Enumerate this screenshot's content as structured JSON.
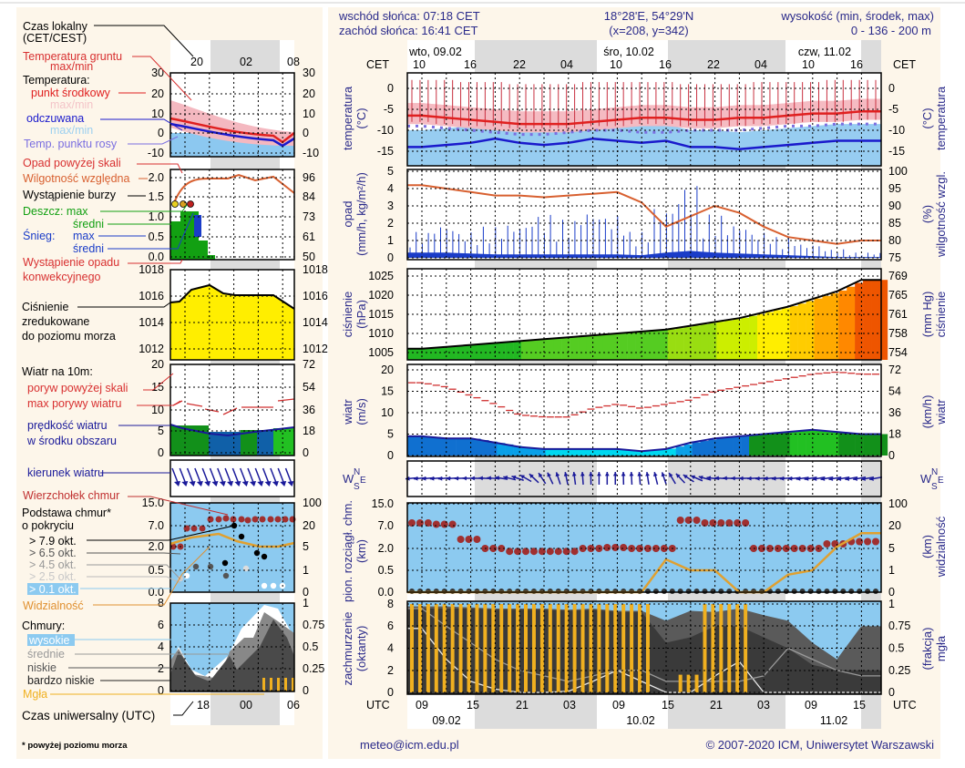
{
  "header": {
    "sunrise": "wschód słońca: 07:18 CET",
    "sunset": "zachód słońca: 16:41 CET",
    "coords": "18°28'E, 54°29'N",
    "grid": "(x=208,  y=342)",
    "altitude_title": "wysokość (min, środek, max)",
    "altitude_values": "0 - 136 - 200 m"
  },
  "time_axis": {
    "tz_top": "CET",
    "tz_bottom": "UTC",
    "top_days": [
      "wto, 09.02",
      "śro, 10.02",
      "czw, 11.02"
    ],
    "top_hours": [
      "10",
      "16",
      "22",
      "04",
      "10",
      "16",
      "22",
      "04",
      "10",
      "16"
    ],
    "bottom_hours": [
      "09",
      "15",
      "21",
      "03",
      "09",
      "15",
      "21",
      "03",
      "09",
      "15"
    ],
    "bottom_days": [
      "09.02",
      "10.02",
      "11.02"
    ]
  },
  "legend": {
    "local_time": "Czas lokalny",
    "local_time_tz": "(CET/CEST)",
    "local_hours": [
      "20",
      "02",
      "08"
    ],
    "utc_hours": [
      "18",
      "00",
      "06"
    ],
    "utc_time": "Czas uniwersalny (UTC)",
    "ground_temp": "Temperatura gruntu",
    "ground_temp_mm": "max/min",
    "temperature": "Temperatura:",
    "midpoint": "punkt środkowy",
    "midpoint_mm": "max/min",
    "feels_like": "odczuwana",
    "feels_like_mm": "max/min",
    "dew_point": "Temp. punktu rosy",
    "precip_over": "Opad powyżej skali",
    "humidity": "Wilgotność względna",
    "storm": "Wystąpienie burzy",
    "rain_max": "Deszcz: max",
    "rain_mean": "średni",
    "snow_label": "Śnieg:",
    "snow_max": "max",
    "snow_mean": "średni",
    "convective_1": "Wystąpienie opadu",
    "convective_2": "konwekcyjnego",
    "pressure_1": "Ciśnienie",
    "pressure_2": "zredukowane",
    "pressure_3": "do poziomu morza",
    "wind_10m": "Wiatr na 10m:",
    "gust_over": "poryw powyżej skali",
    "gust_max": "max porywy wiatru",
    "wind_speed_1": "prędkość wiatru",
    "wind_speed_2": "w środku obszaru",
    "wind_dir": "kierunek wiatru",
    "cloud_top": "Wierzchołek chmur",
    "cloud_base_1": "Podstawa chmur*",
    "cloud_base_2": "o pokryciu",
    "okt": [
      "> 7.9 okt.",
      "> 6.5 okt.",
      "> 4.5 okt.",
      "> 2.5 okt.",
      "> 0.1 okt."
    ],
    "visibility": "Widzialność",
    "clouds": "Chmury:",
    "high": "wysokie",
    "medium": "średnie",
    "low": "niskie",
    "very_low": "bardzo niskie",
    "fog": "Mgła",
    "footnote": "* powyżej poziomu morza",
    "ticks": {
      "temp_l": [
        "30",
        "20",
        "10",
        "0",
        "-10"
      ],
      "temp_r": [
        "30",
        "20",
        "10",
        "0",
        "-10"
      ],
      "prec_l": [
        "2.0",
        "1.5",
        "1.0",
        "0.5",
        "0.0"
      ],
      "prec_r": [
        "96",
        "84",
        "73",
        "61",
        "50"
      ],
      "pres": [
        "1018",
        "1016",
        "1014",
        "1012"
      ],
      "wind_l": [
        "20",
        "15",
        "10",
        "5",
        "0"
      ],
      "wind_r": [
        "72",
        "54",
        "36",
        "18",
        "0"
      ],
      "cloud_l": [
        "15.0",
        "7.0",
        "2.0",
        "0.5",
        "0.0"
      ],
      "cloud_r": [
        "100",
        "20",
        "5",
        "1",
        "0"
      ],
      "cover_l": [
        "8",
        "6",
        "4",
        "2",
        "0"
      ],
      "cover_r": [
        "1",
        "0.75",
        "0.5",
        "0.25",
        "0"
      ]
    }
  },
  "axes": {
    "temp_l": "temperatura",
    "temp_u": "(°C)",
    "prec_l": "opad",
    "prec_u": "(mm/h, kg/m²/h)",
    "hum_l": "wilgotność wzgl.",
    "hum_u": "(%)",
    "pres_l": "ciśnienie",
    "pres_u": "(hPa)",
    "pres_r_u": "(mm Hg)",
    "wind_l": "wiatr",
    "wind_u": "(m/s)",
    "wind_r_u": "(km/h)",
    "compass": [
      "W",
      "N",
      "S",
      "E"
    ],
    "cloud_l": "pion. rozciągł. chm.",
    "cloud_u": "(km)",
    "cover_l": "zachmurzenie",
    "cover_u": "(oktanty)",
    "vis_l": "widzialność",
    "vis_u": "(km)",
    "fog_l": "mgła",
    "fog_u": "(frakcja)"
  },
  "footer": {
    "email": "meteo@icm.edu.pl",
    "copyright": "© 2007-2020 ICM, Uniwersytet Warszawski"
  },
  "colors": {
    "temp_mid": "#e02020",
    "temp_band": "#f4b8c0",
    "feels": "#1a1acc",
    "feels_band": "#8cc8f0",
    "dew": "#7a6ee0",
    "humidity": "#d86030",
    "snow": "#1a3cc8",
    "rain": "#12a012",
    "gust": "#d03030",
    "cloud_top": "#a03030",
    "visibility": "#e0a030",
    "fog": "#f0b020",
    "night": "#dcdcdc",
    "sky": "#8ccaf0",
    "bg": "#fdf6ea"
  },
  "chart_data": [
    {
      "type": "line",
      "title": "temperatura",
      "ylabel": "temperatura (°C)",
      "ylim": [
        -18,
        3
      ],
      "yticks": [
        "0",
        "-5",
        "-10",
        "-15"
      ],
      "x": [
        "09.02 09:00",
        "09.02 12:00",
        "09.02 15:00",
        "09.02 18:00",
        "09.02 21:00",
        "10.02 00:00",
        "10.02 03:00",
        "10.02 06:00",
        "10.02 09:00",
        "10.02 12:00",
        "10.02 15:00",
        "10.02 18:00",
        "10.02 21:00",
        "11.02 00:00",
        "11.02 03:00",
        "11.02 06:00",
        "11.02 09:00",
        "11.02 12:00",
        "11.02 15:00"
      ],
      "series": [
        {
          "name": "punkt środkowy",
          "values": [
            -6.5,
            -7,
            -7.5,
            -8,
            -8.5,
            -8.5,
            -8.5,
            -8,
            -7.5,
            -7,
            -7,
            -7.5,
            -7.5,
            -7,
            -7,
            -6.5,
            -6,
            -6,
            -5.5
          ]
        },
        {
          "name": "odczuwana",
          "values": [
            -14,
            -13.5,
            -13,
            -12,
            -13,
            -13.5,
            -13,
            -12,
            -12.5,
            -13,
            -12.5,
            -14,
            -14,
            -14.5,
            -14,
            -13.5,
            -13,
            -12.5,
            -12.5
          ]
        },
        {
          "name": "Temp. punktu rosy",
          "values": [
            -9,
            -9.5,
            -10,
            -10.5,
            -11,
            -11,
            -10.5,
            -10,
            -10,
            -10.5,
            -10.5,
            -10,
            -10,
            -10,
            -9.5,
            -9,
            -9,
            -8.5,
            -8.5
          ]
        }
      ],
      "ground_temp_max": [
        -1,
        -1,
        -1.5,
        -1.5,
        -2,
        -2,
        -2,
        -1.5,
        -1.5,
        -1.5,
        -1.5,
        -2,
        -2,
        -2,
        -1.5,
        -1.5,
        -1.5,
        -1,
        -1
      ],
      "ground_temp_min": [
        -8,
        -8.5,
        -9,
        -9,
        -9.5,
        -9.5,
        -9.5,
        -9,
        -9,
        -8.5,
        -8.5,
        -9,
        -9,
        -9,
        -8.5,
        -8.5,
        -8,
        -8,
        -7.5
      ]
    },
    {
      "type": "bar",
      "title": "opad / wilgotność",
      "ylabel": "opad (mm/h, kg/m²/h)",
      "ylim": [
        0,
        5
      ],
      "yticks": [
        "5",
        "4",
        "3",
        "2",
        "1",
        "0"
      ],
      "y2label": "wilgotność wzgl. (%)",
      "y2lim": [
        75,
        100
      ],
      "y2ticks": [
        "100",
        "95",
        "90",
        "85",
        "80",
        "75"
      ],
      "x": [
        "09.02 09:00",
        "09.02 12:00",
        "09.02 15:00",
        "09.02 18:00",
        "09.02 21:00",
        "10.02 00:00",
        "10.02 03:00",
        "10.02 06:00",
        "10.02 09:00",
        "10.02 12:00",
        "10.02 15:00",
        "10.02 18:00",
        "10.02 21:00",
        "11.02 00:00",
        "11.02 03:00",
        "11.02 06:00",
        "11.02 09:00",
        "11.02 12:00",
        "11.02 15:00"
      ],
      "series": [
        {
          "name": "Śnieg max",
          "values": [
            1.5,
            2,
            1.5,
            1.8,
            2,
            2.5,
            2.2,
            2.8,
            2.5,
            1.5,
            3,
            4.2,
            2.5,
            2,
            1.5,
            1.2,
            0.8,
            0.5,
            0.3
          ]
        },
        {
          "name": "Śnieg średni",
          "values": [
            0.3,
            0.3,
            0.25,
            0.2,
            0.2,
            0.2,
            0.2,
            0.2,
            0.2,
            0.15,
            0.3,
            0.4,
            0.3,
            0.25,
            0.2,
            0.15,
            0.1,
            0.05,
            0.05
          ]
        },
        {
          "name": "Wilgotność względna",
          "values": [
            96,
            95,
            94,
            93,
            93,
            92.5,
            93,
            93.5,
            94,
            91,
            84,
            87,
            90,
            88,
            84,
            81,
            80,
            79,
            80
          ]
        }
      ]
    },
    {
      "type": "area",
      "title": "ciśnienie",
      "ylabel": "ciśnienie (hPa)",
      "ylim": [
        1003,
        1027
      ],
      "yticks": [
        "1025",
        "1020",
        "1015",
        "1010",
        "1005"
      ],
      "y2label": "ciśnienie (mm Hg)",
      "y2ticks": [
        "769",
        "765",
        "761",
        "758",
        "754"
      ],
      "x": [
        "09.02 09:00",
        "09.02 12:00",
        "09.02 15:00",
        "09.02 18:00",
        "09.02 21:00",
        "10.02 00:00",
        "10.02 03:00",
        "10.02 06:00",
        "10.02 09:00",
        "10.02 12:00",
        "10.02 15:00",
        "10.02 18:00",
        "10.02 21:00",
        "11.02 00:00",
        "11.02 03:00",
        "11.02 06:00",
        "11.02 09:00",
        "11.02 12:00",
        "11.02 15:00"
      ],
      "values": [
        1006,
        1006.5,
        1007,
        1007.5,
        1008,
        1008.5,
        1009,
        1009.5,
        1010,
        1010.5,
        1011,
        1012,
        1013,
        1014,
        1015.5,
        1017,
        1019,
        1021,
        1024
      ]
    },
    {
      "type": "area",
      "title": "wiatr",
      "ylabel": "wiatr (m/s)",
      "ylim": [
        0,
        20
      ],
      "yticks": [
        "20",
        "15",
        "10",
        "5",
        "0"
      ],
      "y2label": "wiatr (km/h)",
      "y2ticks": [
        "72",
        "54",
        "36",
        "18",
        "0"
      ],
      "x": [
        "09.02 09:00",
        "09.02 12:00",
        "09.02 15:00",
        "09.02 18:00",
        "09.02 21:00",
        "10.02 00:00",
        "10.02 03:00",
        "10.02 06:00",
        "10.02 09:00",
        "10.02 12:00",
        "10.02 15:00",
        "10.02 18:00",
        "10.02 21:00",
        "11.02 00:00",
        "11.02 03:00",
        "11.02 06:00",
        "11.02 09:00",
        "11.02 12:00",
        "11.02 15:00"
      ],
      "series": [
        {
          "name": "prędkość wiatru",
          "values": [
            4.5,
            4,
            4,
            3,
            2,
            1.5,
            1.5,
            1.5,
            1.5,
            1,
            1.5,
            3,
            4,
            4.5,
            5,
            5.5,
            6,
            5.5,
            5
          ]
        },
        {
          "name": "max porywy wiatru",
          "values": [
            17,
            16,
            14,
            12,
            9.5,
            9,
            9,
            11,
            12,
            11,
            12,
            13,
            15,
            16,
            17,
            18,
            19,
            19.5,
            19
          ]
        },
        {
          "name": "kierunek wiatru",
          "values": [
            85,
            85,
            90,
            95,
            110,
            150,
            170,
            180,
            180,
            175,
            160,
            120,
            95,
            90,
            85,
            85,
            80,
            80,
            80
          ]
        }
      ]
    },
    {
      "type": "scatter",
      "title": "chmury",
      "ylabel": "pion. rozciągł. chm. (km)",
      "yticks": [
        "15.0",
        "7.0",
        "2.0",
        "0.5",
        "0.0"
      ],
      "y2label": "widzialność (km)",
      "y2ticks": [
        "100",
        "20",
        "5",
        "1",
        "0"
      ],
      "x": [
        "09.02 09:00",
        "09.02 12:00",
        "09.02 15:00",
        "09.02 18:00",
        "09.02 21:00",
        "10.02 00:00",
        "10.02 03:00",
        "10.02 06:00",
        "10.02 09:00",
        "10.02 12:00",
        "10.02 15:00",
        "10.02 18:00",
        "10.02 21:00",
        "11.02 00:00",
        "11.02 03:00",
        "11.02 06:00",
        "11.02 09:00",
        "11.02 12:00",
        "11.02 15:00"
      ],
      "series": [
        {
          "name": "Wierzchołek chmur",
          "values": [
            8,
            7.5,
            4,
            2,
            1.8,
            1.8,
            1.8,
            2,
            2.2,
            2,
            2,
            9,
            8,
            8,
            2,
            2,
            2,
            3,
            3.5
          ]
        },
        {
          "name": "Widzialność",
          "values": [
            0,
            0,
            0,
            0,
            0,
            0,
            0,
            0,
            0,
            0,
            3,
            1,
            1,
            0,
            0,
            0.8,
            1,
            6,
            15
          ]
        }
      ]
    },
    {
      "type": "area",
      "title": "zachmurzenie",
      "ylabel": "zachmurzenie (oktanty)",
      "ylim": [
        0,
        8
      ],
      "yticks": [
        "8",
        "6",
        "4",
        "2",
        "0"
      ],
      "y2label": "mgła (frakcja)",
      "y2ticks": [
        "1",
        "0.75",
        "0.5",
        "0.25",
        "0"
      ],
      "x": [
        "09.02 09:00",
        "09.02 12:00",
        "09.02 15:00",
        "09.02 18:00",
        "09.02 21:00",
        "10.02 00:00",
        "10.02 03:00",
        "10.02 06:00",
        "10.02 09:00",
        "10.02 12:00",
        "10.02 15:00",
        "10.02 18:00",
        "10.02 21:00",
        "11.02 00:00",
        "11.02 03:00",
        "11.02 06:00",
        "11.02 09:00",
        "11.02 12:00",
        "11.02 15:00"
      ],
      "series": [
        {
          "name": "średnie",
          "values": [
            7.8,
            7.8,
            7.7,
            7.6,
            7.6,
            7.6,
            7.5,
            7.6,
            7.4,
            7.4,
            6.5,
            7.4,
            7.3,
            7.6,
            7,
            6.5,
            4.5,
            3,
            6
          ]
        },
        {
          "name": "niskie",
          "values": [
            7.6,
            7.6,
            7.6,
            7.5,
            7.5,
            7.5,
            7.4,
            7.5,
            7.3,
            7.3,
            4.5,
            5,
            6,
            6,
            5,
            4,
            2.5,
            2,
            2
          ]
        },
        {
          "name": "wysokie",
          "values": [
            5.8,
            3,
            1,
            0.3,
            0,
            0,
            0.1,
            1,
            2,
            1,
            0,
            0,
            1.5,
            2.8,
            0,
            0,
            0,
            0,
            0
          ]
        },
        {
          "name": "bardzo niskie",
          "values": [
            7.6,
            6,
            4.5,
            3,
            2,
            1.5,
            1,
            1.5,
            2,
            2,
            1,
            1,
            1,
            1,
            1.5,
            4,
            3,
            2,
            1.5
          ]
        },
        {
          "name": "Mgła",
          "values": [
            1,
            1,
            1,
            1,
            1,
            1,
            1,
            1,
            1,
            1,
            0,
            0.2,
            1,
            1,
            0,
            0,
            0,
            0,
            0
          ]
        }
      ]
    }
  ]
}
